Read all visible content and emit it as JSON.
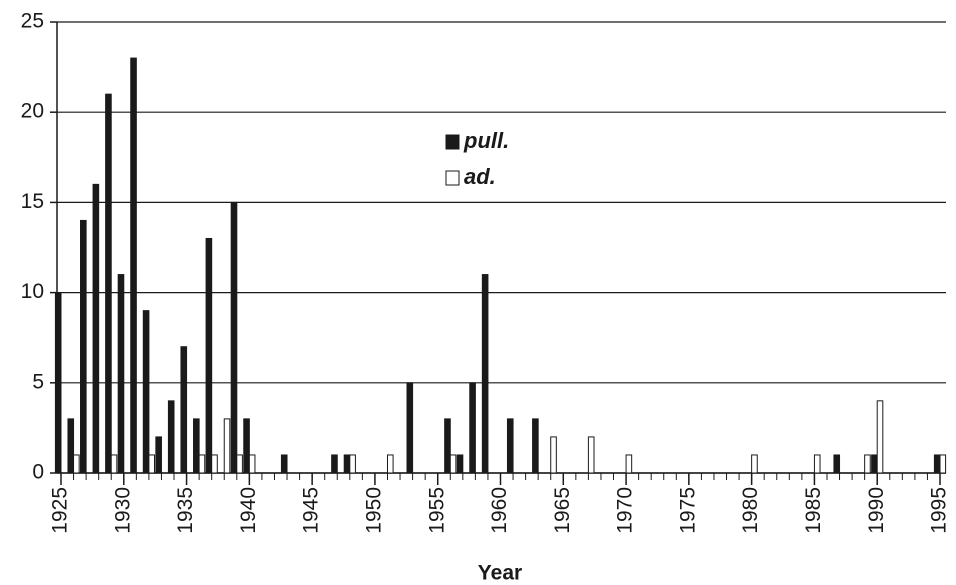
{
  "chart_data": {
    "type": "bar",
    "x_label": "Year",
    "x": [
      1925,
      1926,
      1927,
      1928,
      1929,
      1930,
      1931,
      1932,
      1933,
      1934,
      1935,
      1936,
      1937,
      1938,
      1939,
      1940,
      1941,
      1942,
      1943,
      1944,
      1945,
      1946,
      1947,
      1948,
      1949,
      1950,
      1951,
      1952,
      1953,
      1954,
      1955,
      1956,
      1957,
      1958,
      1959,
      1960,
      1961,
      1962,
      1963,
      1964,
      1965,
      1966,
      1967,
      1968,
      1969,
      1970,
      1971,
      1972,
      1973,
      1974,
      1975,
      1976,
      1977,
      1978,
      1979,
      1980,
      1981,
      1982,
      1983,
      1984,
      1985,
      1986,
      1987,
      1988,
      1989,
      1990,
      1991,
      1992,
      1993,
      1994,
      1995
    ],
    "series": [
      {
        "name": "pull.",
        "color": "#1a1a1a",
        "values": [
          10,
          3,
          14,
          16,
          21,
          11,
          23,
          9,
          2,
          4,
          7,
          3,
          13,
          0,
          15,
          3,
          0,
          0,
          1,
          0,
          0,
          0,
          1,
          1,
          0,
          0,
          0,
          0,
          5,
          0,
          0,
          3,
          1,
          5,
          11,
          0,
          3,
          0,
          3,
          0,
          0,
          0,
          0,
          0,
          0,
          0,
          0,
          0,
          0,
          0,
          0,
          0,
          0,
          0,
          0,
          0,
          0,
          0,
          0,
          0,
          0,
          0,
          1,
          0,
          0,
          1,
          0,
          0,
          0,
          0,
          1
        ]
      },
      {
        "name": "ad.",
        "color": "#ffffff",
        "values": [
          0,
          1,
          0,
          0,
          1,
          0,
          0,
          1,
          0,
          0,
          0,
          1,
          1,
          3,
          1,
          1,
          0,
          0,
          0,
          0,
          0,
          0,
          0,
          1,
          0,
          0,
          1,
          0,
          0,
          0,
          0,
          1,
          0,
          0,
          0,
          0,
          0,
          0,
          0,
          2,
          0,
          0,
          2,
          0,
          0,
          1,
          0,
          0,
          0,
          0,
          0,
          0,
          0,
          0,
          0,
          1,
          0,
          0,
          0,
          0,
          1,
          0,
          0,
          0,
          1,
          4,
          0,
          0,
          0,
          0,
          1
        ]
      }
    ],
    "xlim": [
      1925,
      1995
    ],
    "xticks": [
      1925,
      1930,
      1935,
      1940,
      1945,
      1950,
      1955,
      1960,
      1965,
      1970,
      1975,
      1980,
      1985,
      1990,
      1995
    ],
    "ylim": [
      0,
      25
    ],
    "yticks": [
      0,
      5,
      10,
      15,
      20,
      25
    ],
    "grid": true,
    "legend": "top-center"
  }
}
